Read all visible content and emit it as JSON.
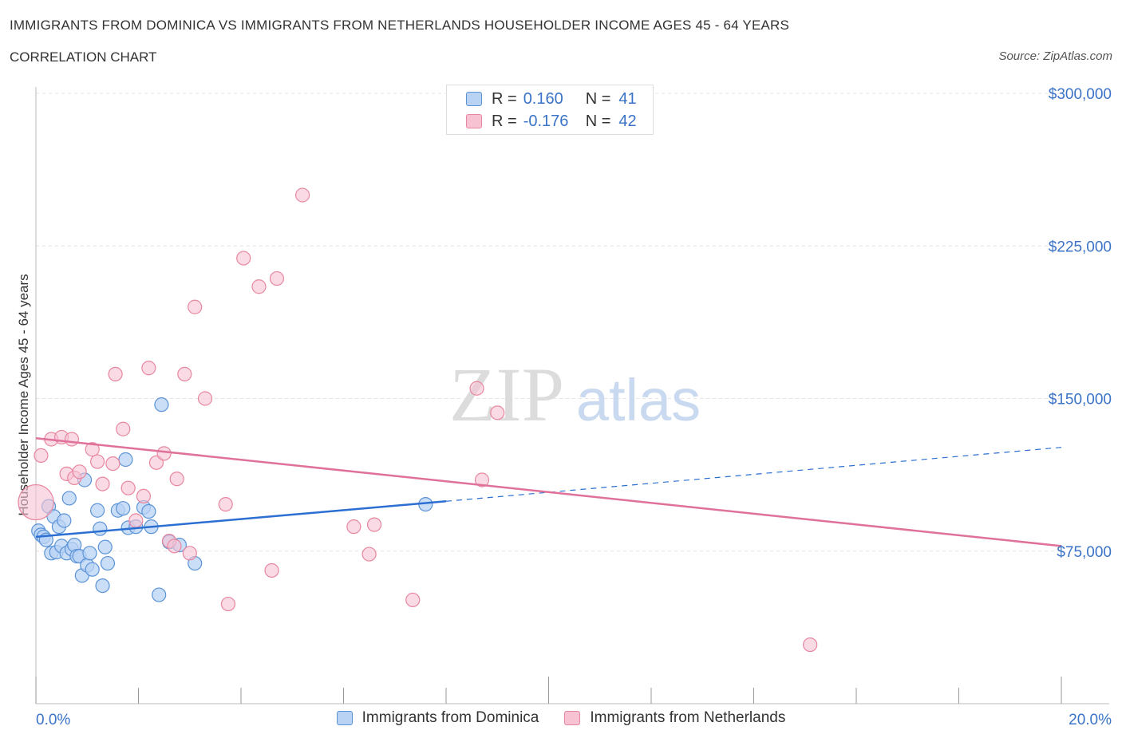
{
  "title": "IMMIGRANTS FROM DOMINICA VS IMMIGRANTS FROM NETHERLANDS HOUSEHOLDER INCOME AGES 45 - 64 YEARS",
  "subtitle": "CORRELATION CHART",
  "source": "Source: ZipAtlas.com",
  "watermark": {
    "zip": "ZIP",
    "atlas": "atlas"
  },
  "legend": {
    "rows": [
      {
        "r_label": "R = ",
        "r_value": "0.160",
        "n_label": "N = ",
        "n_value": "41"
      },
      {
        "r_label": "R = ",
        "r_value": "-0.176",
        "n_label": "N = ",
        "n_value": "42"
      }
    ]
  },
  "colors": {
    "dominica_fill": "#b9d3f5",
    "dominica_stroke": "#5b93d6",
    "dominica_line": "#2a6fd1",
    "netherlands_fill": "#f7c3d3",
    "netherlands_stroke": "#e8869f",
    "netherlands_line": "#e0719a",
    "tick_label": "#3a73c8",
    "grid": "#e4e4e4"
  },
  "chart_data": {
    "type": "scatter",
    "title": "IMMIGRANTS FROM DOMINICA VS IMMIGRANTS FROM NETHERLANDS HOUSEHOLDER INCOME AGES 45 - 64 YEARS",
    "xlabel": "",
    "ylabel": "Householder Income Ages 45 - 64 years",
    "xlim": [
      0,
      20
    ],
    "ylim": [
      0,
      300000
    ],
    "x_tick_labels": [
      "0.0%",
      "20.0%"
    ],
    "y_ticks": [
      75000,
      150000,
      225000,
      300000
    ],
    "y_tick_labels": [
      "$75,000",
      "$150,000",
      "$225,000",
      "$300,000"
    ],
    "grid": true,
    "legend_position": "top-center",
    "series": [
      {
        "name": "Immigrants from Dominica",
        "points": [
          [
            0.05,
            85000
          ],
          [
            0.1,
            83000
          ],
          [
            0.15,
            82000
          ],
          [
            0.2,
            80500
          ],
          [
            0.25,
            97000
          ],
          [
            0.3,
            74000
          ],
          [
            0.35,
            92000
          ],
          [
            0.4,
            74500
          ],
          [
            0.45,
            87000
          ],
          [
            0.5,
            77500
          ],
          [
            0.55,
            90000
          ],
          [
            0.6,
            74000
          ],
          [
            0.65,
            101000
          ],
          [
            0.7,
            76000
          ],
          [
            0.75,
            78000
          ],
          [
            0.8,
            72500
          ],
          [
            0.85,
            72500
          ],
          [
            0.9,
            63000
          ],
          [
            0.95,
            110000
          ],
          [
            1.0,
            68000
          ],
          [
            1.05,
            74000
          ],
          [
            1.1,
            66000
          ],
          [
            1.2,
            95000
          ],
          [
            1.25,
            86000
          ],
          [
            1.3,
            58000
          ],
          [
            1.35,
            77000
          ],
          [
            1.4,
            69000
          ],
          [
            1.6,
            95000
          ],
          [
            1.7,
            96000
          ],
          [
            1.75,
            120000
          ],
          [
            1.8,
            86500
          ],
          [
            1.95,
            87000
          ],
          [
            2.1,
            96500
          ],
          [
            2.2,
            94500
          ],
          [
            2.25,
            87000
          ],
          [
            2.4,
            53500
          ],
          [
            2.45,
            147000
          ],
          [
            2.6,
            79500
          ],
          [
            2.8,
            78000
          ],
          [
            3.1,
            69000
          ],
          [
            7.6,
            98000
          ]
        ],
        "trend": {
          "x": [
            0,
            8.0
          ],
          "y": [
            82000,
            99500
          ],
          "extended_to": [
            20,
            126000
          ]
        }
      },
      {
        "name": "Immigrants from Netherlands",
        "points": [
          [
            0.0,
            99000
          ],
          [
            0.1,
            122000
          ],
          [
            0.3,
            130000
          ],
          [
            0.5,
            131000
          ],
          [
            0.6,
            113000
          ],
          [
            0.7,
            130000
          ],
          [
            0.75,
            111000
          ],
          [
            0.85,
            114000
          ],
          [
            1.1,
            125000
          ],
          [
            1.2,
            119000
          ],
          [
            1.3,
            108000
          ],
          [
            1.5,
            118000
          ],
          [
            1.55,
            162000
          ],
          [
            1.7,
            135000
          ],
          [
            1.8,
            106000
          ],
          [
            1.95,
            90000
          ],
          [
            2.1,
            102000
          ],
          [
            2.2,
            165000
          ],
          [
            2.35,
            118500
          ],
          [
            2.5,
            123000
          ],
          [
            2.6,
            80000
          ],
          [
            2.7,
            77500
          ],
          [
            2.75,
            110500
          ],
          [
            2.9,
            162000
          ],
          [
            3.0,
            74000
          ],
          [
            3.1,
            195000
          ],
          [
            3.3,
            150000
          ],
          [
            3.7,
            98000
          ],
          [
            3.75,
            49000
          ],
          [
            4.05,
            219000
          ],
          [
            4.35,
            205000
          ],
          [
            4.6,
            65500
          ],
          [
            4.7,
            209000
          ],
          [
            5.2,
            250000
          ],
          [
            6.2,
            87000
          ],
          [
            6.5,
            73500
          ],
          [
            6.6,
            88000
          ],
          [
            7.35,
            51000
          ],
          [
            8.6,
            155000
          ],
          [
            8.7,
            110000
          ],
          [
            9.0,
            143000
          ],
          [
            15.1,
            29000
          ]
        ],
        "trend": {
          "x": [
            0,
            20
          ],
          "y": [
            130500,
            77500
          ]
        }
      }
    ]
  }
}
